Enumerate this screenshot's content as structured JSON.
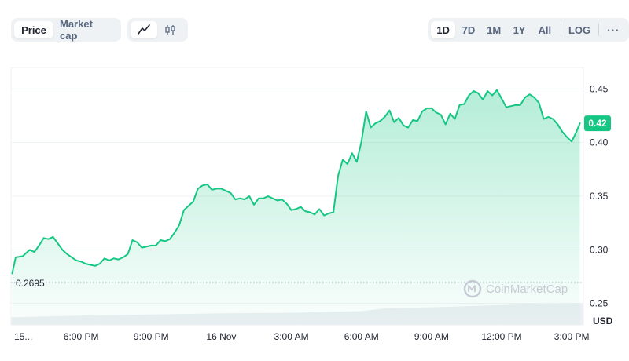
{
  "toolbar": {
    "metric_tabs": [
      {
        "label": "Price",
        "active": true
      },
      {
        "label": "Market cap",
        "active": false
      }
    ],
    "chart_style_icons": [
      "line-chart-icon",
      "candlestick-icon"
    ],
    "range_buttons": [
      {
        "label": "1D",
        "active": true
      },
      {
        "label": "7D",
        "active": false
      },
      {
        "label": "1M",
        "active": false
      },
      {
        "label": "1Y",
        "active": false
      },
      {
        "label": "All",
        "active": false
      }
    ],
    "log_label": "LOG",
    "more_label": "···"
  },
  "watermark": "CoinMarketCap",
  "colors": {
    "line": "#16c784",
    "badge": "#16c784",
    "volume": "#eceff3",
    "grid": "#eff2f5"
  },
  "chart_data": {
    "type": "area",
    "currency": "USD",
    "open_price_label": "0.2695",
    "open_price": 0.2695,
    "current_price_label": "0.42",
    "current_price": 0.418,
    "ylim": [
      0.23,
      0.47
    ],
    "y_ticks": [
      "0.25",
      "0.30",
      "0.35",
      "0.40",
      "0.45"
    ],
    "y_tick_values": [
      0.25,
      0.3,
      0.35,
      0.4,
      0.45
    ],
    "x_ticks": [
      "15...",
      "6:00 PM",
      "9:00 PM",
      "16 Nov",
      "3:00 AM",
      "6:00 AM",
      "9:00 AM",
      "12:00 PM",
      "3:00 PM"
    ],
    "x_tick_hours": [
      15.1,
      18,
      21,
      24,
      27,
      30,
      33,
      36,
      39
    ],
    "xlim": [
      15.0,
      39.5
    ],
    "grid": true,
    "price_series": {
      "hours": [
        15.05,
        15.2,
        15.5,
        15.8,
        16.0,
        16.2,
        16.4,
        16.6,
        16.8,
        17.0,
        17.2,
        17.4,
        17.6,
        17.8,
        18.0,
        18.2,
        18.4,
        18.6,
        18.8,
        19.0,
        19.2,
        19.4,
        19.6,
        19.8,
        20.0,
        20.2,
        20.4,
        20.6,
        20.8,
        21.0,
        21.2,
        21.4,
        21.6,
        21.8,
        22.0,
        22.2,
        22.4,
        22.6,
        22.8,
        23.0,
        23.2,
        23.4,
        23.6,
        23.8,
        24.0,
        24.2,
        24.4,
        24.6,
        24.8,
        25.0,
        25.2,
        25.4,
        25.6,
        25.8,
        26.0,
        26.2,
        26.4,
        26.6,
        26.8,
        27.0,
        27.2,
        27.4,
        27.6,
        27.8,
        28.0,
        28.2,
        28.4,
        28.6,
        28.8,
        29.0,
        29.2,
        29.4,
        29.6,
        29.8,
        30.0,
        30.2,
        30.4,
        30.6,
        30.8,
        31.0,
        31.2,
        31.4,
        31.6,
        31.8,
        32.0,
        32.2,
        32.4,
        32.6,
        32.8,
        33.0,
        33.2,
        33.4,
        33.6,
        33.8,
        34.0,
        34.2,
        34.4,
        34.6,
        34.8,
        35.0,
        35.2,
        35.4,
        35.6,
        35.8,
        36.0,
        36.2,
        36.4,
        36.6,
        36.8,
        37.0,
        37.2,
        37.4,
        37.6,
        37.8,
        38.0,
        38.2,
        38.4,
        38.6,
        38.8,
        39.0,
        39.2,
        39.35
      ],
      "values": [
        0.278,
        0.293,
        0.294,
        0.3,
        0.298,
        0.304,
        0.311,
        0.31,
        0.312,
        0.306,
        0.3,
        0.296,
        0.293,
        0.29,
        0.289,
        0.287,
        0.286,
        0.285,
        0.287,
        0.292,
        0.29,
        0.292,
        0.291,
        0.293,
        0.296,
        0.309,
        0.307,
        0.302,
        0.303,
        0.304,
        0.304,
        0.309,
        0.308,
        0.31,
        0.316,
        0.323,
        0.337,
        0.341,
        0.345,
        0.357,
        0.36,
        0.361,
        0.356,
        0.357,
        0.357,
        0.355,
        0.353,
        0.347,
        0.348,
        0.347,
        0.35,
        0.342,
        0.348,
        0.348,
        0.35,
        0.348,
        0.346,
        0.347,
        0.343,
        0.337,
        0.338,
        0.34,
        0.336,
        0.335,
        0.333,
        0.338,
        0.332,
        0.334,
        0.335,
        0.369,
        0.384,
        0.38,
        0.39,
        0.382,
        0.401,
        0.429,
        0.414,
        0.418,
        0.42,
        0.424,
        0.43,
        0.419,
        0.423,
        0.416,
        0.414,
        0.421,
        0.42,
        0.429,
        0.432,
        0.432,
        0.428,
        0.426,
        0.417,
        0.427,
        0.422,
        0.435,
        0.436,
        0.444,
        0.448,
        0.446,
        0.44,
        0.448,
        0.444,
        0.449,
        0.441,
        0.433,
        0.434,
        0.435,
        0.435,
        0.442,
        0.445,
        0.442,
        0.437,
        0.422,
        0.424,
        0.422,
        0.417,
        0.41,
        0.405,
        0.401,
        0.41,
        0.418
      ]
    },
    "volume_series": {
      "hours": [
        15.0,
        18.0,
        21.0,
        24.0,
        27.0,
        30.0,
        31.0,
        33.0,
        36.0,
        39.5
      ],
      "relative_values": [
        0.14,
        0.17,
        0.19,
        0.21,
        0.22,
        0.25,
        0.3,
        0.32,
        0.36,
        0.4
      ]
    }
  }
}
